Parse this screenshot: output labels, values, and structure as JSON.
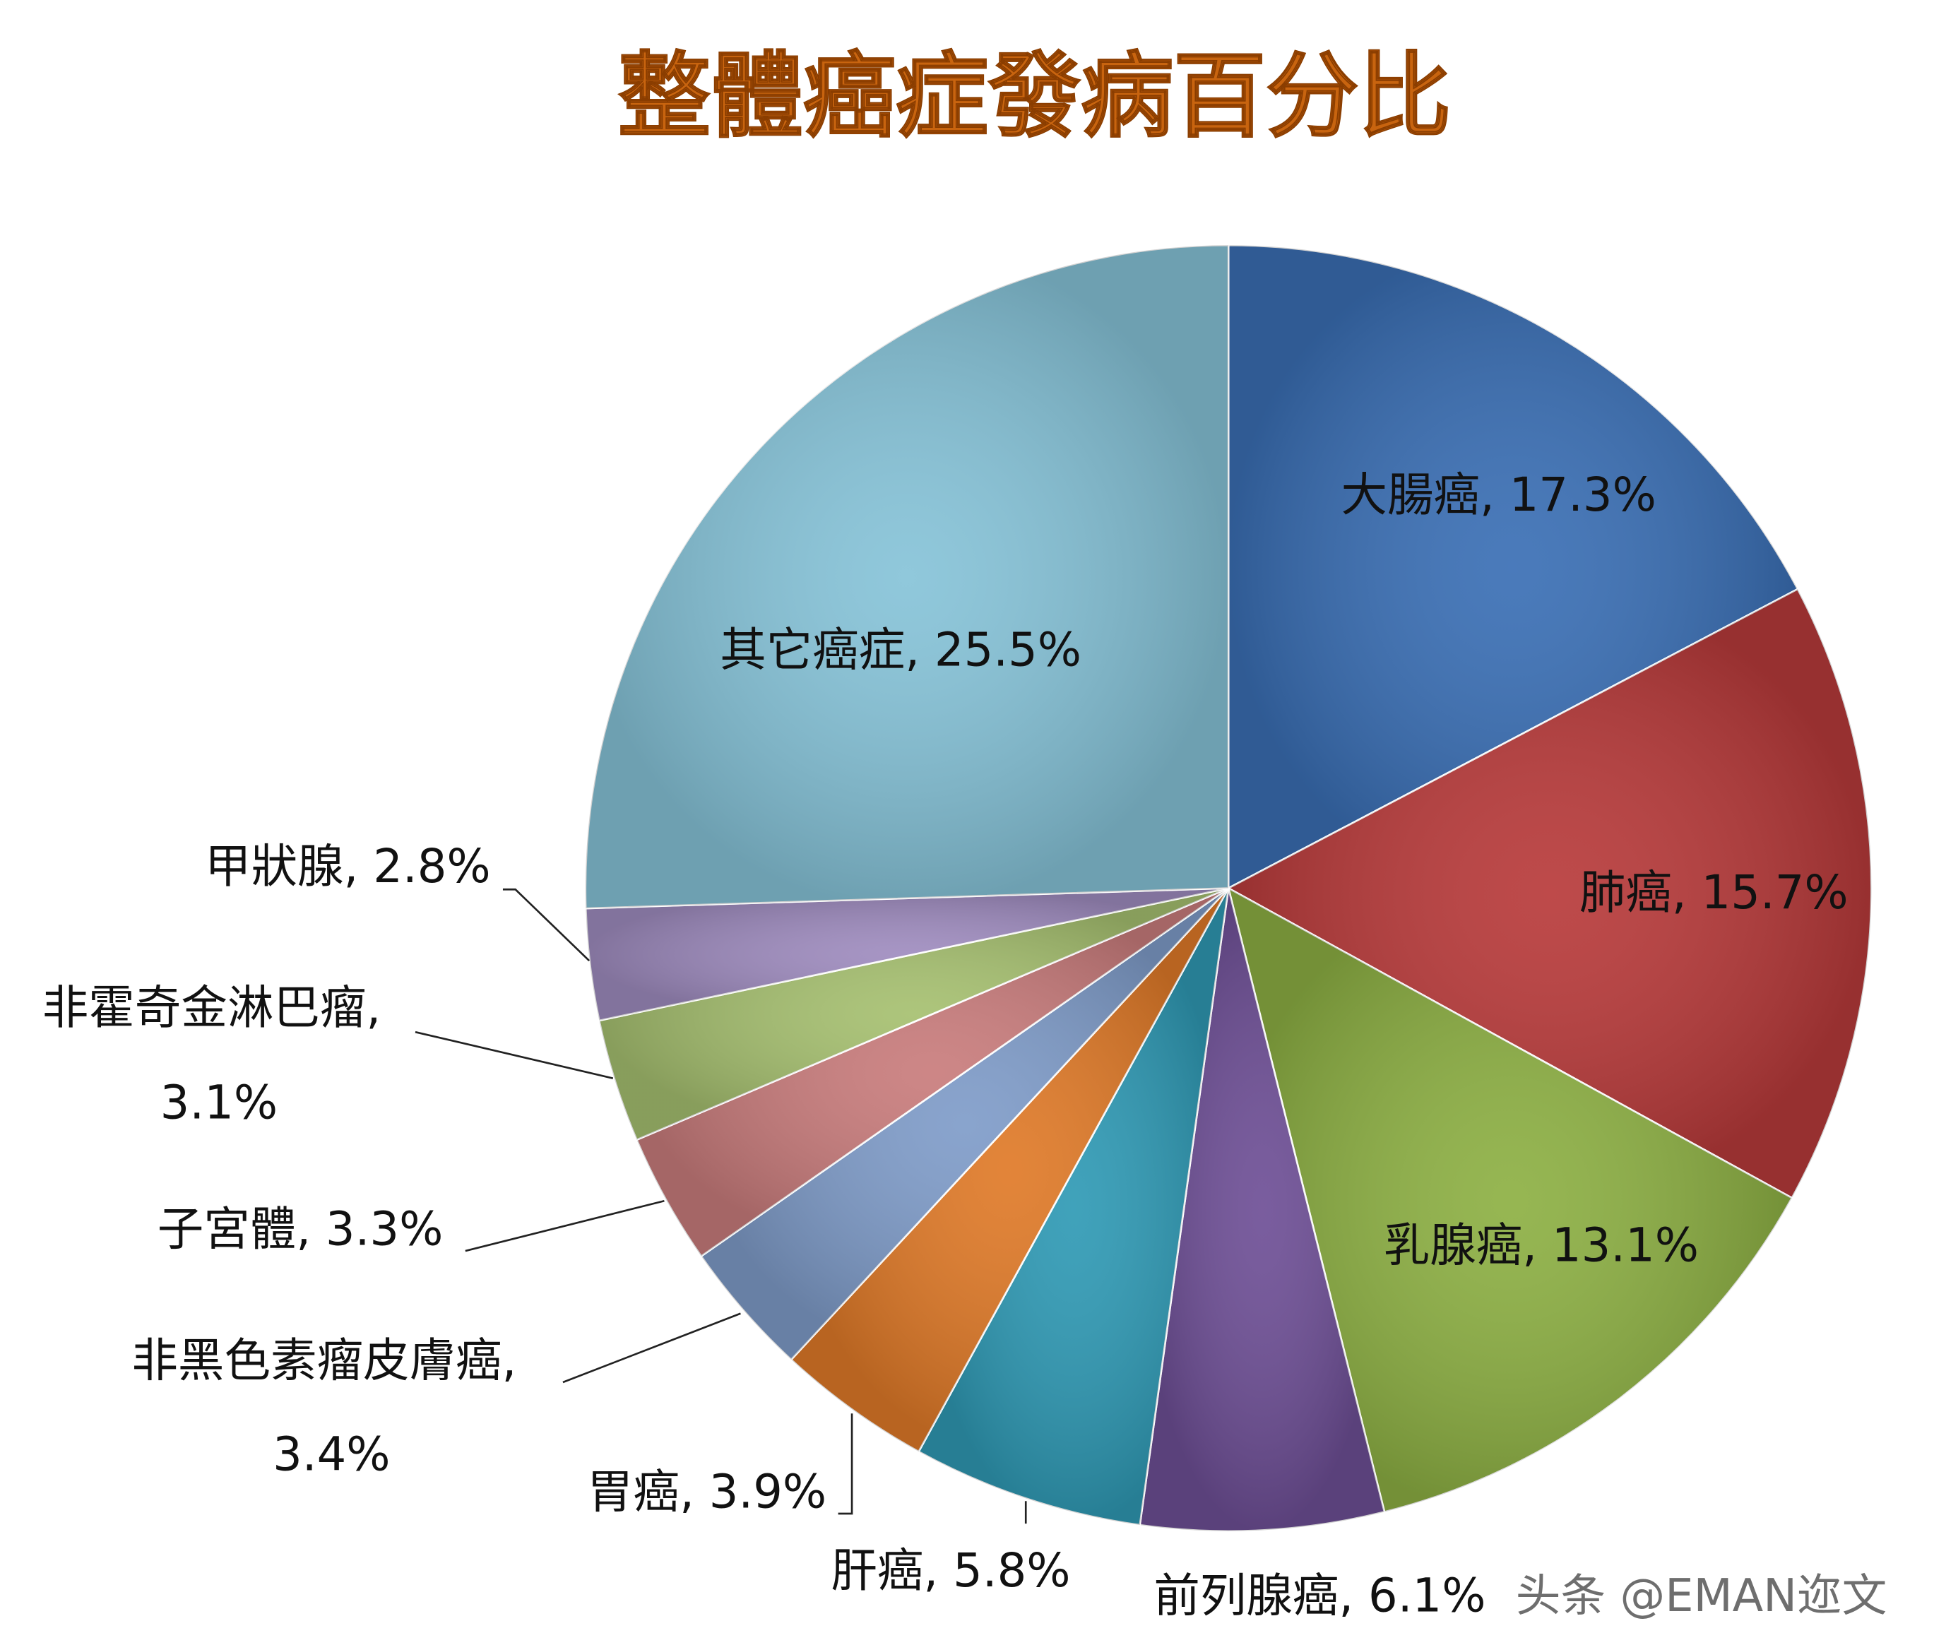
{
  "chart_data": {
    "type": "pie",
    "title": "整體癌症發病百分比",
    "categories": [
      "大腸癌",
      "肺癌",
      "乳腺癌",
      "前列腺癌",
      "肝癌",
      "胃癌",
      "非黑色素瘤皮膚癌",
      "子宮體",
      "非霍奇金淋巴瘤",
      "甲狀腺",
      "其它癌症"
    ],
    "values": [
      17.3,
      15.7,
      13.1,
      6.1,
      5.8,
      3.9,
      3.4,
      3.3,
      3.1,
      2.8,
      25.5
    ],
    "value_labels": [
      "17.3%",
      "15.7%",
      "13.1%",
      "6.1%",
      "5.8%",
      "3.9%",
      "3.4%",
      "3.3%",
      "3.1%",
      "2.8%",
      "25.5%"
    ],
    "label_separator": ", ",
    "colors": [
      "#3a6fb5",
      "#b83a3a",
      "#8db043",
      "#6e4f96",
      "#2f9ab5",
      "#e07a28",
      "#7f9cc9",
      "#c97c7c",
      "#a6c070",
      "#9f8cbf",
      "#86c3d8"
    ],
    "watermark": "头条 @EMAN迩文"
  }
}
